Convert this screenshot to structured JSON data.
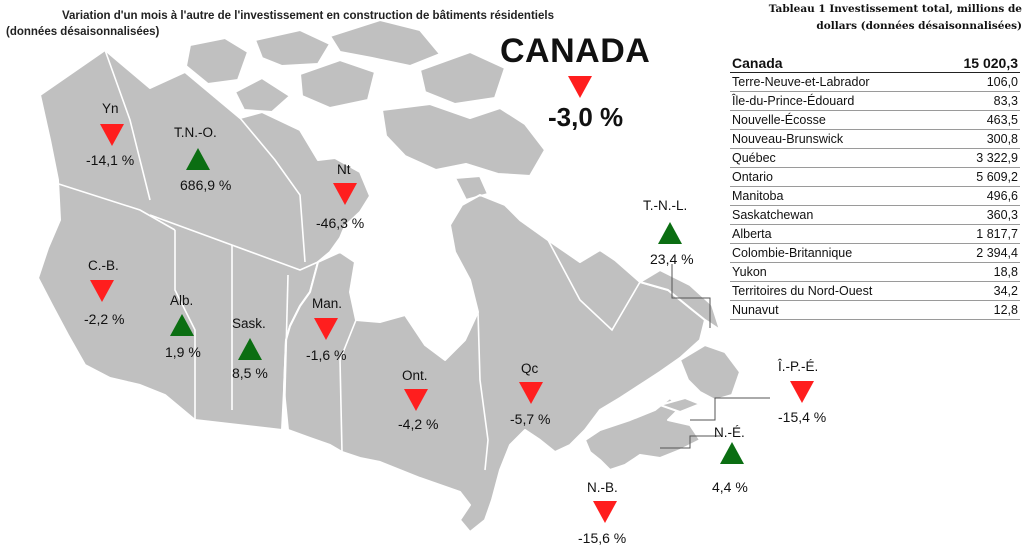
{
  "title": {
    "line1": "Variation d'un mois à l'autre de l'investissement en construction de bâtiments résidentiels",
    "line2": "(données désaisonnalisées)"
  },
  "national": {
    "name": "CANADA",
    "change": "-3,0 %",
    "direction": "down"
  },
  "colors": {
    "land": "#c0c0c0",
    "border": "#ffffff",
    "down": "#ff1e1e",
    "up": "#0b6e12",
    "water": "#ffffff"
  },
  "regions": [
    {
      "id": "yn",
      "label": "Yn",
      "change": "-14,1 %",
      "direction": "down"
    },
    {
      "id": "tno",
      "label": "T.N.-O.",
      "change": "686,9 %",
      "direction": "up"
    },
    {
      "id": "nt",
      "label": "Nt",
      "change": "-46,3 %",
      "direction": "down"
    },
    {
      "id": "cb",
      "label": "C.-B.",
      "change": "-2,2 %",
      "direction": "down"
    },
    {
      "id": "alb",
      "label": "Alb.",
      "change": "1,9 %",
      "direction": "up"
    },
    {
      "id": "sask",
      "label": "Sask.",
      "change": "8,5 %",
      "direction": "up"
    },
    {
      "id": "man",
      "label": "Man.",
      "change": "-1,6 %",
      "direction": "down"
    },
    {
      "id": "ont",
      "label": "Ont.",
      "change": "-4,2 %",
      "direction": "down"
    },
    {
      "id": "qc",
      "label": "Qc",
      "change": "-5,7 %",
      "direction": "down"
    },
    {
      "id": "tnl",
      "label": "T.-N.-L.",
      "change": "23,4 %",
      "direction": "up"
    },
    {
      "id": "ipe",
      "label": "Î.-P.-É.",
      "change": "-15,4 %",
      "direction": "down"
    },
    {
      "id": "ne",
      "label": "N.-É.",
      "change": "4,4 %",
      "direction": "up"
    },
    {
      "id": "nb",
      "label": "N.-B.",
      "change": "-15,6 %",
      "direction": "down"
    }
  ],
  "table": {
    "title_line1": "Tableau 1 Investissement total, millions de",
    "title_line2": "dollars (données désaisonnalisées)",
    "header": {
      "name": "Canada",
      "value": "15 020,3"
    },
    "rows": [
      {
        "name": "Terre-Neuve-et-Labrador",
        "value": "106,0"
      },
      {
        "name": "Île-du-Prince-Édouard",
        "value": "83,3"
      },
      {
        "name": "Nouvelle-Écosse",
        "value": "463,5"
      },
      {
        "name": "Nouveau-Brunswick",
        "value": "300,8"
      },
      {
        "name": "Québec",
        "value": "3 322,9"
      },
      {
        "name": "Ontario",
        "value": "5 609,2"
      },
      {
        "name": "Manitoba",
        "value": "496,6"
      },
      {
        "name": "Saskatchewan",
        "value": "360,3"
      },
      {
        "name": "Alberta",
        "value": "1 817,7"
      },
      {
        "name": "Colombie-Britannique",
        "value": "2 394,4"
      },
      {
        "name": "Yukon",
        "value": "18,8"
      },
      {
        "name": "Territoires du Nord-Ouest",
        "value": "34,2"
      },
      {
        "name": "Nunavut",
        "value": "12,8"
      }
    ]
  }
}
